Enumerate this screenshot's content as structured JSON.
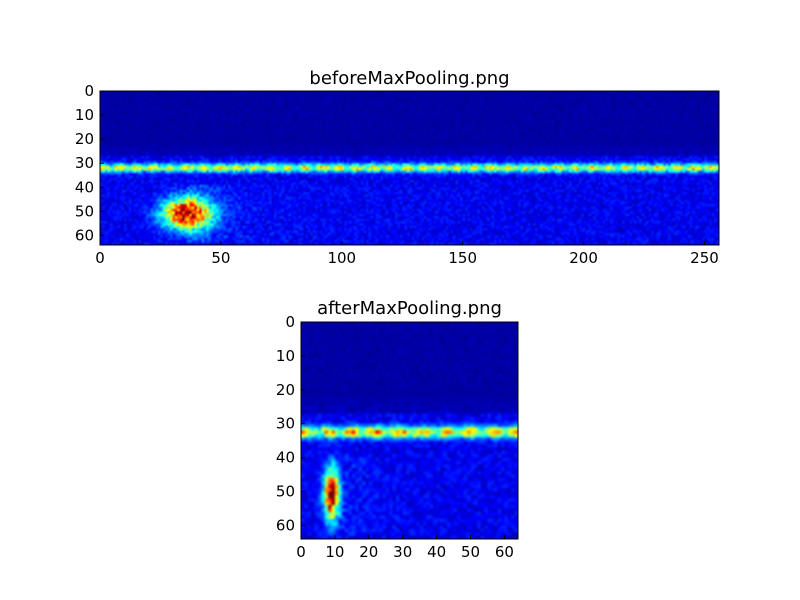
{
  "chart_data": [
    {
      "type": "heatmap",
      "title": "beforeMaxPooling.png",
      "xlabel": "",
      "ylabel": "",
      "xlim": [
        0,
        256
      ],
      "ylim": [
        64,
        0
      ],
      "xticks": [
        0,
        50,
        100,
        150,
        200,
        250
      ],
      "yticks": [
        0,
        10,
        20,
        30,
        40,
        50,
        60
      ],
      "colormap": "jet",
      "grid": false,
      "features": [
        {
          "kind": "horizontal-band",
          "y": 32,
          "intensity": 0.62
        },
        {
          "kind": "hot-spot",
          "x": 36,
          "y": 51,
          "intensity": 1.0
        }
      ],
      "background_color": "#00007f"
    },
    {
      "type": "heatmap",
      "title": "afterMaxPooling.png",
      "xlabel": "",
      "ylabel": "",
      "xlim": [
        0,
        64
      ],
      "ylim": [
        64,
        0
      ],
      "xticks": [
        0,
        10,
        20,
        30,
        40,
        50,
        60
      ],
      "yticks": [
        0,
        10,
        20,
        30,
        40,
        50,
        60
      ],
      "colormap": "jet",
      "grid": false,
      "features": [
        {
          "kind": "horizontal-band",
          "y": 32.5,
          "intensity": 0.7
        },
        {
          "kind": "hot-spot",
          "x": 9,
          "y": 51,
          "intensity": 1.0
        }
      ],
      "background_color": "#00007f"
    }
  ]
}
